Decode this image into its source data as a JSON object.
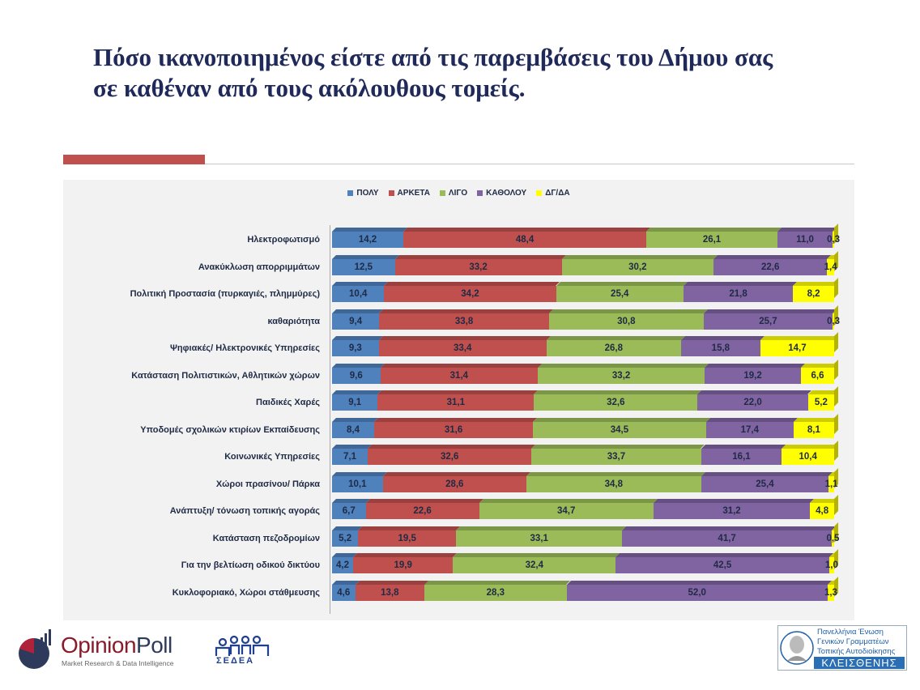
{
  "title_lines": [
    "Πόσο ικανοποιημένος είστε από τις παρεμβάσεις του Δήμου σας",
    "σε καθέναν από τους ακόλουθους τομείς."
  ],
  "chart_data": {
    "type": "bar",
    "orientation": "horizontal-stacked-100",
    "title": "Πόσο ικανοποιημένος είστε από τις παρεμβάσεις του Δήμου σας σε καθέναν από τους ακόλουθους τομείς.",
    "legend_position": "top",
    "xlim": [
      0,
      100
    ],
    "categories": [
      "Ηλεκτροφωτισμό",
      "Ανακύκλωση απορριμμάτων",
      "Πολιτική Προστασία (πυρκαγιές, πλημμύρες)",
      "καθαριότητα",
      "Ψηφιακές/ Ηλεκτρονικές Υπηρεσίες",
      "Κατάσταση Πολιτιστικών, Αθλητικών χώρων",
      "Παιδικές Χαρές",
      "Υποδομές σχολικών κτιρίων Εκπαίδευσης",
      "Κοινωνικές Υπηρεσίες",
      "Χώροι πρασίνου/ Πάρκα",
      "Ανάπτυξη/ τόνωση τοπικής αγοράς",
      "Κατάσταση πεζοδρομίων",
      "Για την βελτίωση οδικού δικτύου",
      "Κυκλοφοριακό, Χώροι στάθμευσης"
    ],
    "series": [
      {
        "name": "ΠΟΛΥ",
        "color": "#4f81bd",
        "values": [
          14.2,
          12.5,
          10.4,
          9.4,
          9.3,
          9.6,
          9.1,
          8.4,
          7.1,
          10.1,
          6.7,
          5.2,
          4.2,
          4.6
        ]
      },
      {
        "name": "ΑΡΚΕΤΑ",
        "color": "#c0504d",
        "values": [
          48.4,
          33.2,
          34.2,
          33.8,
          33.4,
          31.4,
          31.1,
          31.6,
          32.6,
          28.6,
          22.6,
          19.5,
          19.9,
          13.8
        ]
      },
      {
        "name": "ΛΙΓΟ",
        "color": "#9bbb59",
        "values": [
          26.1,
          30.2,
          25.4,
          30.8,
          26.8,
          33.2,
          32.6,
          34.5,
          33.7,
          34.8,
          34.7,
          33.1,
          32.4,
          28.3
        ]
      },
      {
        "name": "ΚΑΘΟΛΟΥ",
        "color": "#8064a2",
        "values": [
          11.0,
          22.6,
          21.8,
          25.7,
          15.8,
          19.2,
          22.0,
          17.4,
          16.1,
          25.4,
          31.2,
          41.7,
          42.5,
          52.0
        ]
      },
      {
        "name": "ΔΓ/ΔΑ",
        "color": "#ffff00",
        "values": [
          0.3,
          1.4,
          8.2,
          0.3,
          14.7,
          6.6,
          5.2,
          8.1,
          10.4,
          1.1,
          4.8,
          0.5,
          1.0,
          1.3
        ]
      }
    ]
  },
  "logos": {
    "opinionpoll": {
      "name_a": "Opinion",
      "name_b": "Poll",
      "tagline": "Market Research & Data Intelligence"
    },
    "sedea": {
      "name": "ΣΕΔΕΑ"
    },
    "kleisthenis": {
      "lines": [
        "Πανελλήνια Ένωση",
        "Γενικών Γραμματέων",
        "Τοπικής Αυτοδιοίκησης"
      ],
      "name": "ΚΛΕΙΣΘΕΝΗΣ"
    }
  }
}
